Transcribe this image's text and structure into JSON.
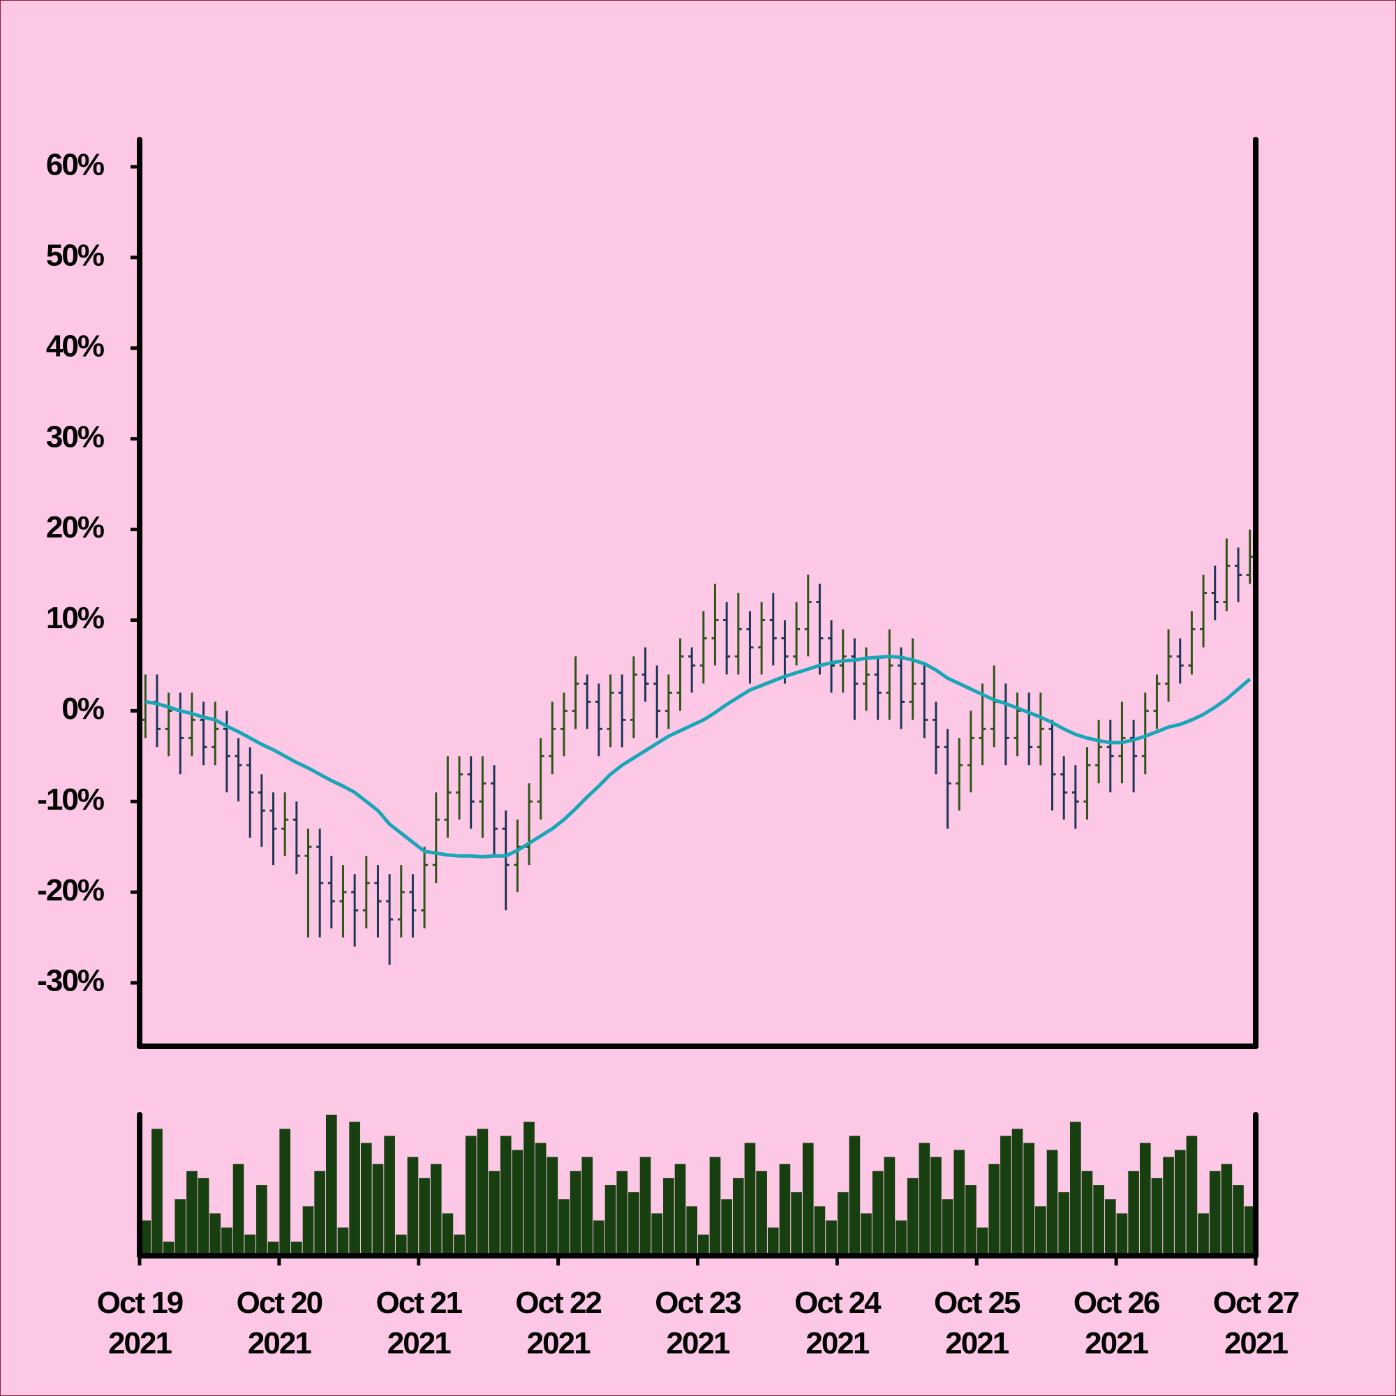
{
  "chart_data": {
    "type": "ohlc",
    "open": [
      -1,
      1,
      -2,
      0,
      -3,
      -1,
      -4,
      -2,
      -5,
      -6,
      -9,
      -11,
      -13,
      -12,
      -16,
      -15,
      -19,
      -21,
      -20,
      -22,
      -19,
      -21,
      -23,
      -20,
      -22,
      -17,
      -12,
      -9,
      -7,
      -10,
      -8,
      -13,
      -17,
      -15,
      -10,
      -5,
      -2,
      0,
      3,
      1,
      -2,
      2,
      -1,
      4,
      3,
      0,
      2,
      6,
      5,
      8,
      10,
      6,
      9,
      7,
      10,
      8,
      6,
      9,
      12,
      8,
      5,
      6,
      3,
      4,
      2,
      5,
      1,
      3,
      -1,
      -4,
      -8,
      -6,
      -3,
      -2,
      1,
      -3,
      0,
      -4,
      -2,
      -7,
      -9,
      -10,
      -6,
      -4,
      -5,
      -3,
      -5,
      0,
      3,
      6,
      5,
      9,
      13,
      12,
      16,
      15
    ],
    "high": [
      4,
      4,
      2,
      2,
      2,
      1,
      1,
      0,
      -3,
      -4,
      -7,
      -9,
      -9,
      -10,
      -13,
      -13,
      -16,
      -17,
      -18,
      -16,
      -17,
      -18,
      -17,
      -18,
      -15,
      -9,
      -5,
      -5,
      -5,
      -5,
      -6,
      -11,
      -12,
      -8,
      -3,
      1,
      2,
      6,
      4,
      3,
      4,
      4,
      6,
      7,
      5,
      4,
      8,
      7,
      11,
      14,
      12,
      13,
      11,
      12,
      13,
      10,
      12,
      15,
      14,
      10,
      9,
      8,
      7,
      6,
      9,
      7,
      8,
      5,
      1,
      -2,
      -3,
      0,
      3,
      5,
      3,
      2,
      2,
      2,
      -1,
      -5,
      -6,
      -4,
      -1,
      -1,
      1,
      -1,
      2,
      4,
      9,
      8,
      11,
      15,
      16,
      19,
      18,
      20
    ],
    "low": [
      -3,
      -4,
      -5,
      -7,
      -5,
      -6,
      -6,
      -9,
      -10,
      -14,
      -15,
      -17,
      -16,
      -18,
      -25,
      -25,
      -24,
      -25,
      -26,
      -24,
      -25,
      -28,
      -25,
      -25,
      -24,
      -19,
      -14,
      -12,
      -13,
      -14,
      -16,
      -22,
      -20,
      -17,
      -12,
      -7,
      -5,
      -2,
      -2,
      -5,
      -4,
      -4,
      -3,
      1,
      -3,
      -2,
      0,
      2,
      3,
      5,
      4,
      4,
      3,
      4,
      5,
      3,
      5,
      6,
      4,
      2,
      2,
      -1,
      0,
      -1,
      -1,
      -2,
      -1,
      -3,
      -7,
      -13,
      -11,
      -9,
      -6,
      -4,
      -6,
      -5,
      -6,
      -6,
      -11,
      -12,
      -13,
      -12,
      -8,
      -9,
      -8,
      -9,
      -7,
      -2,
      1,
      3,
      4,
      7,
      10,
      11,
      12,
      14
    ],
    "close": [
      1,
      -2,
      0,
      -3,
      -1,
      -4,
      -2,
      -5,
      -6,
      -9,
      -11,
      -13,
      -12,
      -16,
      -15,
      -19,
      -21,
      -20,
      -22,
      -19,
      -21,
      -23,
      -20,
      -22,
      -17,
      -12,
      -9,
      -7,
      -10,
      -8,
      -13,
      -17,
      -15,
      -10,
      -5,
      -2,
      0,
      3,
      1,
      -2,
      2,
      -1,
      4,
      3,
      0,
      2,
      6,
      5,
      8,
      10,
      6,
      9,
      7,
      10,
      8,
      6,
      9,
      12,
      8,
      5,
      6,
      3,
      4,
      2,
      5,
      1,
      3,
      -1,
      -4,
      -8,
      -6,
      -3,
      -2,
      1,
      -3,
      0,
      -4,
      -2,
      -7,
      -9,
      -10,
      -6,
      -4,
      -5,
      -3,
      -5,
      0,
      3,
      6,
      5,
      9,
      13,
      12,
      16,
      15,
      17
    ],
    "up_color": "#2e5418",
    "down_color": "#1d3656",
    "moving_average": {
      "color": "#1aa6b6",
      "values": [
        1,
        0.8,
        0.4,
        0,
        -0.3,
        -0.7,
        -1,
        -1.7,
        -2.3,
        -3,
        -3.7,
        -4.3,
        -5,
        -5.7,
        -6.3,
        -7,
        -7.7,
        -8.3,
        -9,
        -10,
        -11,
        -12.5,
        -13.5,
        -14.5,
        -15.5,
        -15.7,
        -15.9,
        -16,
        -16,
        -16.1,
        -16,
        -16,
        -15.4,
        -14.6,
        -13.8,
        -13,
        -12,
        -10.8,
        -9.5,
        -8.3,
        -7,
        -6,
        -5.2,
        -4.4,
        -3.6,
        -2.8,
        -2.2,
        -1.6,
        -1,
        -0.2,
        0.7,
        1.5,
        2.3,
        2.8,
        3.3,
        3.8,
        4.2,
        4.6,
        5,
        5.3,
        5.5,
        5.6,
        5.8,
        5.9,
        6,
        5.9,
        5.6,
        5.2,
        4.5,
        3.6,
        3,
        2.4,
        1.8,
        1.2,
        0.8,
        0.3,
        -0.2,
        -0.7,
        -1.3,
        -2,
        -2.6,
        -3,
        -3.3,
        -3.5,
        -3.5,
        -3.2,
        -2.8,
        -2.3,
        -1.8,
        -1.5,
        -1,
        -0.4,
        0.4,
        1.3,
        2.4,
        3.5
      ]
    },
    "ylim": [
      -37,
      63
    ],
    "yticks": [
      {
        "value": -30,
        "label": "-30%"
      },
      {
        "value": -20,
        "label": "-20%"
      },
      {
        "value": -10,
        "label": "-10%"
      },
      {
        "value": 0,
        "label": "0%"
      },
      {
        "value": 10,
        "label": "10%"
      },
      {
        "value": 20,
        "label": "20%"
      },
      {
        "value": 30,
        "label": "30%"
      },
      {
        "value": 40,
        "label": "40%"
      },
      {
        "value": 50,
        "label": "50%"
      },
      {
        "value": 60,
        "label": "60%"
      }
    ],
    "xlim": [
      0,
      96
    ],
    "xticks": [
      {
        "value": 0,
        "label": "Oct 19\n2021"
      },
      {
        "value": 12,
        "label": "Oct 20\n2021"
      },
      {
        "value": 24,
        "label": "Oct 21\n2021"
      },
      {
        "value": 36,
        "label": "Oct 22\n2021"
      },
      {
        "value": 48,
        "label": "Oct 23\n2021"
      },
      {
        "value": 60,
        "label": "Oct 24\n2021"
      },
      {
        "value": 72,
        "label": "Oct 25\n2021"
      },
      {
        "value": 84,
        "label": "Oct 26\n2021"
      },
      {
        "value": 96,
        "label": "Oct 27\n2021"
      }
    ],
    "volume": {
      "color": "#173f10",
      "ylim": [
        0,
        100
      ],
      "values": [
        25,
        90,
        10,
        40,
        60,
        55,
        30,
        20,
        65,
        15,
        50,
        10,
        90,
        10,
        35,
        60,
        100,
        20,
        95,
        80,
        65,
        85,
        15,
        70,
        55,
        65,
        30,
        15,
        85,
        90,
        60,
        85,
        75,
        95,
        80,
        70,
        40,
        60,
        70,
        25,
        50,
        60,
        45,
        70,
        30,
        55,
        65,
        35,
        15,
        70,
        40,
        55,
        80,
        60,
        20,
        65,
        45,
        80,
        35,
        25,
        45,
        85,
        30,
        60,
        70,
        25,
        55,
        80,
        70,
        40,
        75,
        50,
        20,
        65,
        85,
        90,
        80,
        35,
        75,
        45,
        95,
        60,
        50,
        40,
        30,
        60,
        80,
        55,
        70,
        75,
        85,
        30,
        60,
        65,
        50,
        35
      ]
    }
  }
}
